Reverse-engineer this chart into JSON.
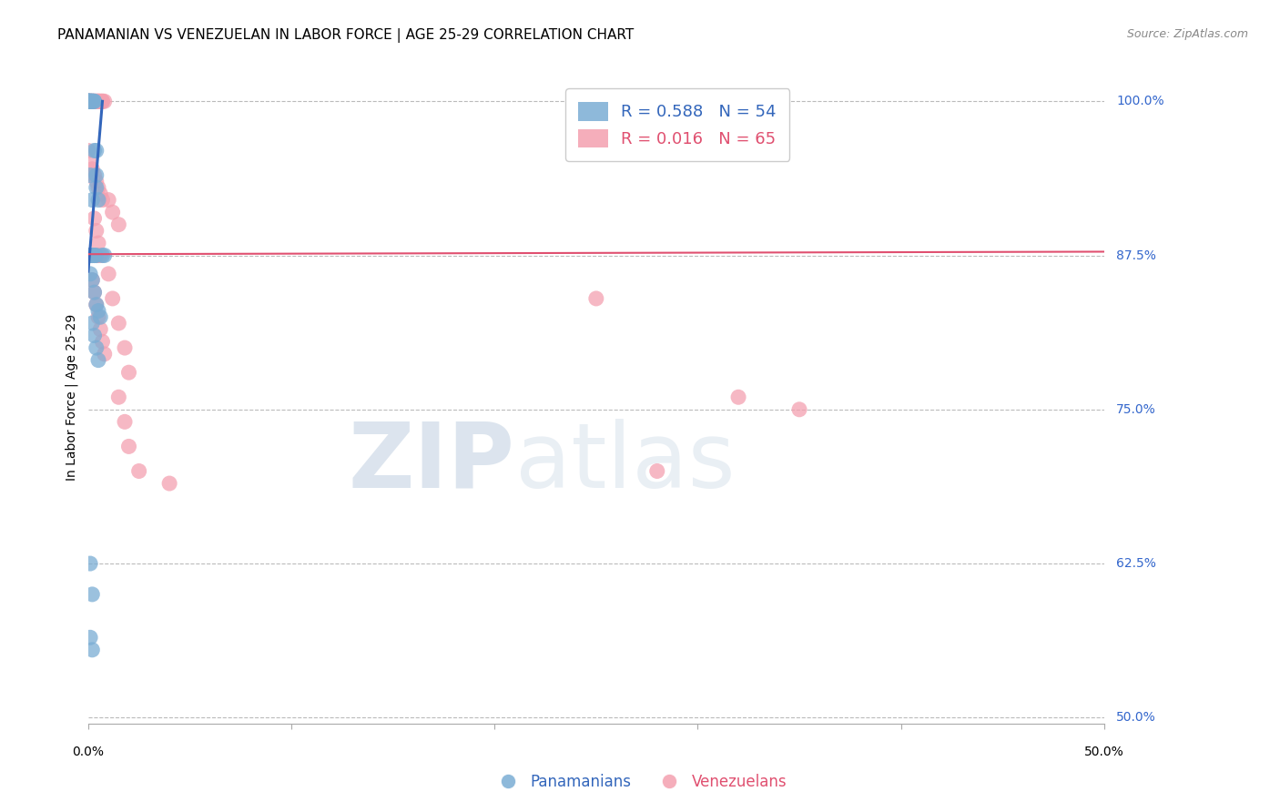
{
  "title": "PANAMANIAN VS VENEZUELAN IN LABOR FORCE | AGE 25-29 CORRELATION CHART",
  "source": "Source: ZipAtlas.com",
  "ylabel": "In Labor Force | Age 25-29",
  "ytick_labels": [
    "50.0%",
    "62.5%",
    "75.0%",
    "87.5%",
    "100.0%"
  ],
  "ytick_values": [
    0.5,
    0.625,
    0.75,
    0.875,
    1.0
  ],
  "xlim": [
    0.0,
    0.5
  ],
  "ylim": [
    0.495,
    1.025
  ],
  "watermark_zip": "ZIP",
  "watermark_atlas": "atlas",
  "blue_color": "#7aadd4",
  "pink_color": "#f4a0b0",
  "blue_line_color": "#3366bb",
  "pink_line_color": "#e05070",
  "blue_scatter": [
    [
      0.0,
      1.0
    ],
    [
      0.0,
      1.0
    ],
    [
      0.0,
      1.0
    ],
    [
      0.0,
      1.0
    ],
    [
      0.0,
      1.0
    ],
    [
      0.0,
      1.0
    ],
    [
      0.0,
      1.0
    ],
    [
      0.0,
      1.0
    ],
    [
      0.0,
      1.0
    ],
    [
      0.0,
      1.0
    ],
    [
      0.001,
      1.0
    ],
    [
      0.001,
      1.0
    ],
    [
      0.001,
      1.0
    ],
    [
      0.001,
      1.0
    ],
    [
      0.001,
      1.0
    ],
    [
      0.002,
      1.0
    ],
    [
      0.002,
      1.0
    ],
    [
      0.002,
      1.0
    ],
    [
      0.002,
      1.0
    ],
    [
      0.003,
      1.0
    ],
    [
      0.003,
      1.0
    ],
    [
      0.003,
      0.96
    ],
    [
      0.004,
      0.96
    ],
    [
      0.004,
      0.94
    ],
    [
      0.004,
      0.93
    ],
    [
      0.005,
      0.92
    ],
    [
      0.001,
      0.94
    ],
    [
      0.002,
      0.92
    ],
    [
      0.0,
      0.875
    ],
    [
      0.0,
      0.875
    ],
    [
      0.0,
      0.875
    ],
    [
      0.001,
      0.875
    ],
    [
      0.001,
      0.875
    ],
    [
      0.002,
      0.875
    ],
    [
      0.002,
      0.875
    ],
    [
      0.003,
      0.875
    ],
    [
      0.003,
      0.875
    ],
    [
      0.004,
      0.875
    ],
    [
      0.001,
      0.86
    ],
    [
      0.002,
      0.855
    ],
    [
      0.003,
      0.845
    ],
    [
      0.004,
      0.835
    ],
    [
      0.005,
      0.83
    ],
    [
      0.006,
      0.825
    ],
    [
      0.002,
      0.82
    ],
    [
      0.003,
      0.81
    ],
    [
      0.004,
      0.8
    ],
    [
      0.005,
      0.79
    ],
    [
      0.001,
      0.625
    ],
    [
      0.002,
      0.6
    ],
    [
      0.001,
      0.565
    ],
    [
      0.002,
      0.555
    ],
    [
      0.007,
      0.875
    ],
    [
      0.008,
      0.875
    ]
  ],
  "pink_scatter": [
    [
      0.0,
      1.0
    ],
    [
      0.0,
      1.0
    ],
    [
      0.0,
      1.0
    ],
    [
      0.0,
      1.0
    ],
    [
      0.001,
      1.0
    ],
    [
      0.001,
      1.0
    ],
    [
      0.001,
      1.0
    ],
    [
      0.002,
      1.0
    ],
    [
      0.002,
      1.0
    ],
    [
      0.003,
      1.0
    ],
    [
      0.003,
      1.0
    ],
    [
      0.004,
      1.0
    ],
    [
      0.004,
      1.0
    ],
    [
      0.005,
      1.0
    ],
    [
      0.005,
      1.0
    ],
    [
      0.005,
      1.0
    ],
    [
      0.006,
      1.0
    ],
    [
      0.006,
      1.0
    ],
    [
      0.007,
      1.0
    ],
    [
      0.007,
      1.0
    ],
    [
      0.008,
      1.0
    ],
    [
      0.0,
      0.875
    ],
    [
      0.0,
      0.875
    ],
    [
      0.0,
      0.875
    ],
    [
      0.001,
      0.875
    ],
    [
      0.001,
      0.875
    ],
    [
      0.002,
      0.875
    ],
    [
      0.002,
      0.875
    ],
    [
      0.003,
      0.875
    ],
    [
      0.004,
      0.875
    ],
    [
      0.004,
      0.875
    ],
    [
      0.005,
      0.875
    ],
    [
      0.006,
      0.875
    ],
    [
      0.0,
      0.96
    ],
    [
      0.001,
      0.95
    ],
    [
      0.002,
      0.945
    ],
    [
      0.003,
      0.94
    ],
    [
      0.004,
      0.935
    ],
    [
      0.005,
      0.93
    ],
    [
      0.006,
      0.925
    ],
    [
      0.007,
      0.92
    ],
    [
      0.003,
      0.905
    ],
    [
      0.004,
      0.895
    ],
    [
      0.005,
      0.885
    ],
    [
      0.002,
      0.855
    ],
    [
      0.003,
      0.845
    ],
    [
      0.004,
      0.835
    ],
    [
      0.005,
      0.825
    ],
    [
      0.006,
      0.815
    ],
    [
      0.007,
      0.805
    ],
    [
      0.008,
      0.795
    ],
    [
      0.01,
      0.92
    ],
    [
      0.012,
      0.91
    ],
    [
      0.015,
      0.9
    ],
    [
      0.01,
      0.86
    ],
    [
      0.012,
      0.84
    ],
    [
      0.015,
      0.82
    ],
    [
      0.018,
      0.8
    ],
    [
      0.02,
      0.78
    ],
    [
      0.015,
      0.76
    ],
    [
      0.018,
      0.74
    ],
    [
      0.02,
      0.72
    ],
    [
      0.025,
      0.7
    ],
    [
      0.25,
      0.84
    ],
    [
      0.32,
      0.76
    ],
    [
      0.35,
      0.75
    ],
    [
      0.28,
      0.7
    ],
    [
      0.04,
      0.69
    ]
  ],
  "blue_trendline_x": [
    0.0,
    0.007
  ],
  "blue_trendline_y": [
    0.862,
    1.0
  ],
  "pink_trendline_x": [
    0.0,
    0.5
  ],
  "pink_trendline_y": [
    0.876,
    0.878
  ],
  "title_fontsize": 11,
  "axis_label_fontsize": 10,
  "tick_fontsize": 10,
  "legend_fontsize": 13,
  "source_fontsize": 9,
  "background_color": "#ffffff"
}
